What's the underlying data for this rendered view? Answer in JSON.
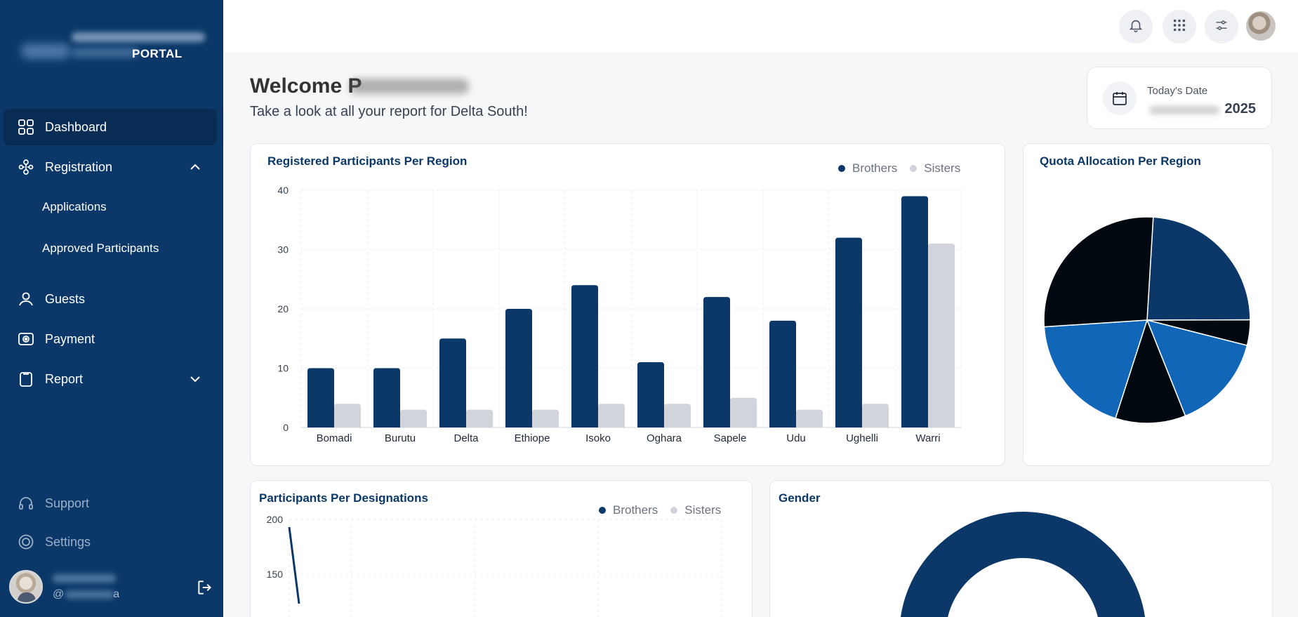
{
  "sidebar": {
    "logo_text": "PORTAL",
    "items": [
      {
        "label": "Dashboard",
        "icon": "grid-icon"
      },
      {
        "label": "Registration",
        "icon": "users-network-icon"
      },
      {
        "label": "Guests",
        "icon": "user-icon"
      },
      {
        "label": "Payment",
        "icon": "camera-icon"
      },
      {
        "label": "Report",
        "icon": "clipboard-icon"
      }
    ],
    "registration_sub": [
      "Applications",
      "Approved Participants"
    ],
    "footer_items": [
      {
        "label": "Support",
        "icon": "headset-icon"
      },
      {
        "label": "Settings",
        "icon": "gear-icon"
      }
    ],
    "user_handle": "@",
    "user_handle_end": "a"
  },
  "header": {
    "icons": [
      "bell-icon",
      "apps-grid-icon",
      "sliders-icon",
      "avatar"
    ]
  },
  "welcome": {
    "title": "Welcome P",
    "subtitle": "Take a look at all your report for Delta South!"
  },
  "date_card": {
    "label": "Today's Date",
    "year": "2025"
  },
  "colors": {
    "brand": "#0b3868",
    "brothers": "#0b3868",
    "sisters": "#d1d5db",
    "pie": [
      "#0b3868",
      "#020810",
      "#1166b8",
      "#020810",
      "#1166b8",
      "#020810"
    ]
  },
  "charts": {
    "region": {
      "title": "Registered Participants Per Region",
      "legend": [
        "Brothers",
        "Sisters"
      ]
    },
    "quota": {
      "title": "Quota Allocation Per Region"
    },
    "designation": {
      "title": "Participants Per Designations",
      "legend": [
        "Brothers",
        "Sisters"
      ]
    },
    "gender": {
      "title": "Gender"
    }
  },
  "chart_data": [
    {
      "type": "bar",
      "title": "Registered Participants Per Region",
      "categories": [
        "Bomadi",
        "Burutu",
        "Delta",
        "Ethiope",
        "Isoko",
        "Oghara",
        "Sapele",
        "Udu",
        "Ughelli",
        "Warri"
      ],
      "series": [
        {
          "name": "Brothers",
          "values": [
            10,
            10,
            15,
            20,
            24,
            11,
            22,
            18,
            32,
            39
          ]
        },
        {
          "name": "Sisters",
          "values": [
            4,
            3,
            3,
            3,
            4,
            4,
            5,
            3,
            4,
            31
          ]
        }
      ],
      "yticks": [
        0,
        10,
        20,
        30,
        40
      ],
      "ylim": [
        0,
        40
      ],
      "grid": true,
      "legend": "top-right"
    },
    {
      "type": "pie",
      "title": "Quota Allocation Per Region",
      "values": [
        24,
        4,
        15,
        11,
        19,
        27
      ]
    },
    {
      "type": "line",
      "title": "Participants Per Designations",
      "series": [
        {
          "name": "Brothers",
          "values": [
            193,
            123
          ]
        },
        {
          "name": "Sisters",
          "values": []
        }
      ],
      "yticks": [
        150,
        200
      ],
      "grid": true,
      "legend": "top-right"
    },
    {
      "type": "pie",
      "title": "Gender"
    }
  ]
}
